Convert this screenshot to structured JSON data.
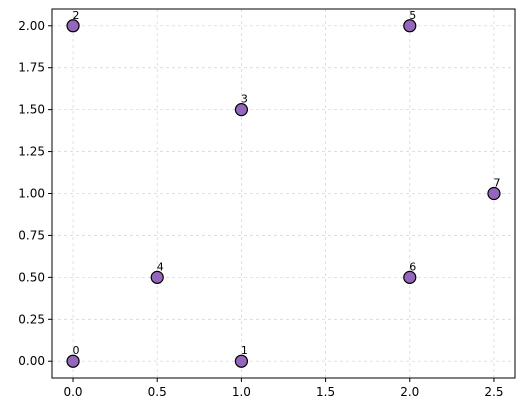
{
  "chart_data": {
    "type": "scatter",
    "title": "",
    "xlabel": "",
    "ylabel": "",
    "xlim": [
      -0.125,
      2.625
    ],
    "ylim": [
      -0.1,
      2.1
    ],
    "grid": true,
    "x_ticks": [
      0.0,
      0.5,
      1.0,
      1.5,
      2.0,
      2.5
    ],
    "x_tick_labels": [
      "0.0",
      "0.5",
      "1.0",
      "1.5",
      "2.0",
      "2.5"
    ],
    "y_ticks": [
      0.0,
      0.25,
      0.5,
      0.75,
      1.0,
      1.25,
      1.5,
      1.75,
      2.0
    ],
    "y_tick_labels": [
      "0.00",
      "0.25",
      "0.50",
      "0.75",
      "1.00",
      "1.25",
      "1.50",
      "1.75",
      "2.00"
    ],
    "points": [
      {
        "label": "0",
        "x": 0.0,
        "y": 0.0
      },
      {
        "label": "1",
        "x": 1.0,
        "y": 0.0
      },
      {
        "label": "2",
        "x": 0.0,
        "y": 2.0
      },
      {
        "label": "3",
        "x": 1.0,
        "y": 1.5
      },
      {
        "label": "4",
        "x": 0.5,
        "y": 0.5
      },
      {
        "label": "5",
        "x": 2.0,
        "y": 2.0
      },
      {
        "label": "6",
        "x": 2.0,
        "y": 0.5
      },
      {
        "label": "7",
        "x": 2.5,
        "y": 1.0
      }
    ],
    "marker_color": "#9467bd",
    "marker_edge_color": "#000000",
    "grid_color": "#d9d9d9"
  }
}
